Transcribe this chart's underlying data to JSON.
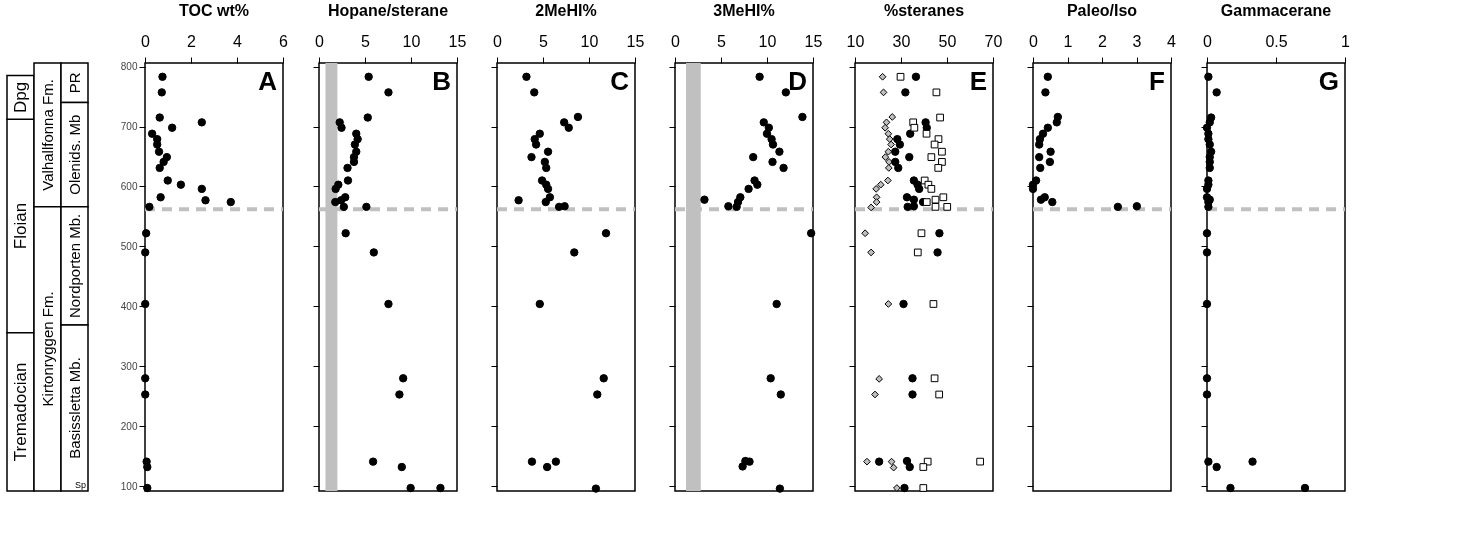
{
  "chart_data": [
    {
      "type": "scatter",
      "title": "TOC wt%",
      "xlim": [
        0,
        6
      ],
      "xticks": [
        0,
        2,
        4,
        6
      ],
      "ylim": [
        92,
        806
      ],
      "yticks": [
        100,
        200,
        300,
        400,
        500,
        600,
        700,
        800
      ],
      "marker": "circle",
      "annotations": [
        "A",
        "Floian",
        "Tremadocian",
        "Dpg",
        "Valhallfonna Fm.",
        "Kirtonryggen Fm.",
        "PR",
        "Olenids. Mb",
        "Nordporten Mb.",
        "Basissletta Mb.",
        "Sp"
      ],
      "ref_lines": [
        {
          "axis": "y",
          "value": 562,
          "color": "#c0c0c0",
          "line_style": "dashed"
        }
      ],
      "series": [
        {
          "color": "#000000",
          "x": [
            0.76,
            0.73,
            0.64,
            2.47,
            1.18,
            0.31,
            0.53,
            0.53,
            0.61,
            0.95,
            0.81,
            0.64,
            0.99,
            1.56,
            2.47,
            0.68,
            2.63,
            3.73,
            0.19,
            0.05,
            0.01,
            0.01,
            0.01,
            0.01,
            0.07,
            0.1,
            0.1
          ],
          "values": [
            783,
            757,
            715,
            707,
            698,
            688,
            679,
            670,
            658,
            649,
            641,
            631,
            610,
            603,
            596,
            582,
            577,
            574,
            566,
            522,
            490,
            404,
            280,
            253,
            141,
            132,
            97
          ]
        }
      ]
    },
    {
      "type": "scatter",
      "title": "Hopane/sterane",
      "xlim": [
        0,
        15
      ],
      "xticks": [
        0,
        5,
        10,
        15
      ],
      "ylim": [
        92,
        806
      ],
      "yticks": [
        100,
        200,
        300,
        400,
        500,
        600,
        700,
        800
      ],
      "tick_labels": "x",
      "marker": "circle",
      "annotations": [
        "B"
      ],
      "bands": [
        {
          "axis": "x",
          "from": 0.7,
          "to": 2.0,
          "color": "#c0c0c0"
        }
      ],
      "ref_lines": [
        {
          "axis": "y",
          "value": 562,
          "color": "#c0c0c0",
          "line_style": "dashed"
        }
      ],
      "series": [
        {
          "color": "#000000",
          "x": [
            5.4,
            7.55,
            5.3,
            2.25,
            2.45,
            4.05,
            4.2,
            3.9,
            4.05,
            3.8,
            3.8,
            3.1,
            3.15,
            2.1,
            1.81,
            2.85,
            2.4,
            1.77,
            2.7,
            5.15,
            2.9,
            5.96,
            7.55,
            9.15,
            8.74,
            5.88,
            9.0,
            9.96,
            13.2
          ],
          "values": [
            783,
            757,
            715,
            707,
            698,
            688,
            679,
            670,
            658,
            649,
            641,
            631,
            610,
            603,
            596,
            582,
            577,
            574,
            566,
            566,
            522,
            490,
            404,
            280,
            253,
            141,
            132,
            97,
            97
          ]
        }
      ]
    },
    {
      "type": "scatter",
      "title": "2MeHI%",
      "xlim": [
        0,
        15
      ],
      "xticks": [
        0,
        5,
        10,
        15
      ],
      "ylim": [
        92,
        806
      ],
      "yticks": [
        100,
        200,
        300,
        400,
        500,
        600,
        700,
        800
      ],
      "tick_labels": "x",
      "marker": "circle",
      "annotations": [
        "C"
      ],
      "ref_lines": [
        {
          "axis": "y",
          "value": 562,
          "color": "#c0c0c0",
          "line_style": "dashed"
        }
      ],
      "series": [
        {
          "color": "#000000",
          "x": [
            3.2,
            4.05,
            8.8,
            7.3,
            7.8,
            4.65,
            4.1,
            4.25,
            5.55,
            3.75,
            5.2,
            5.35,
            4.9,
            5.35,
            5.55,
            5.75,
            2.35,
            5.3,
            6.75,
            7.35,
            11.85,
            8.4,
            4.65,
            11.6,
            10.9,
            3.8,
            5.45,
            6.4,
            10.75
          ],
          "values": [
            783,
            757,
            716,
            707,
            698,
            688,
            679,
            670,
            658,
            649,
            641,
            631,
            610,
            603,
            596,
            582,
            577,
            574,
            566,
            567,
            522,
            490,
            404,
            280,
            253,
            141,
            132,
            141,
            96
          ]
        }
      ]
    },
    {
      "type": "scatter",
      "title": "3MeHI%",
      "xlim": [
        0,
        15
      ],
      "xticks": [
        0,
        5,
        10,
        15
      ],
      "ylim": [
        92,
        806
      ],
      "yticks": [
        100,
        200,
        300,
        400,
        500,
        600,
        700,
        800
      ],
      "tick_labels": "x",
      "marker": "circle",
      "annotations": [
        "D"
      ],
      "bands": [
        {
          "axis": "x",
          "from": 1.2,
          "to": 2.8,
          "color": "#c0c0c0"
        }
      ],
      "ref_lines": [
        {
          "axis": "y",
          "value": 562,
          "color": "#c0c0c0",
          "line_style": "dashed"
        }
      ],
      "series": [
        {
          "color": "#000000",
          "x": [
            9.2,
            12.05,
            13.85,
            9.65,
            10.2,
            10.0,
            10.5,
            10.65,
            11.35,
            8.5,
            10.6,
            11.8,
            8.65,
            8.95,
            8.0,
            7.1,
            3.2,
            6.85,
            5.8,
            6.7,
            14.8,
            11.05,
            10.4,
            11.5,
            7.65,
            8.1,
            7.35,
            11.4
          ],
          "values": [
            783,
            757,
            716,
            707,
            698,
            688,
            679,
            670,
            658,
            649,
            641,
            631,
            610,
            603,
            596,
            582,
            578,
            574,
            567,
            566,
            522,
            404,
            280,
            253,
            142,
            141,
            133,
            96
          ]
        }
      ]
    },
    {
      "type": "scatter",
      "title": "%steranes",
      "xlim": [
        10,
        70
      ],
      "xticks": [
        10,
        30,
        50,
        70
      ],
      "ylim": [
        92,
        806
      ],
      "yticks": [
        100,
        200,
        300,
        400,
        500,
        600,
        700,
        800
      ],
      "tick_labels": "x",
      "annotations": [
        "E"
      ],
      "ref_lines": [
        {
          "axis": "y",
          "value": 562,
          "color": "#c0c0c0",
          "line_style": "dashed"
        }
      ],
      "series": [
        {
          "color": "#bfbfbf",
          "marker": "diamond",
          "x": [
            22.0,
            22.4,
            26.2,
            23.7,
            23.1,
            24.5,
            25.1,
            25.7,
            24.5,
            23.2,
            24.8,
            24.7,
            24.3,
            21.2,
            19.2,
            19.4,
            19.4,
            17.0,
            14.4,
            17.0,
            24.5,
            20.5,
            18.7,
            15.2,
            25.9,
            26.8,
            28.2
          ],
          "values": [
            783,
            757,
            716,
            707,
            698,
            688,
            679,
            670,
            658,
            649,
            641,
            631,
            610,
            603,
            596,
            582,
            574,
            565,
            522,
            490,
            404,
            279,
            253,
            141,
            141,
            131,
            97
          ]
        },
        {
          "color": "#000000",
          "marker": "circle",
          "x": [
            36.5,
            31.9,
            40.7,
            41.2,
            34.0,
            28.4,
            29.5,
            27.5,
            33.6,
            27.5,
            28.8,
            35.6,
            37.2,
            37.9,
            32.6,
            35.6,
            39.6,
            32.9,
            35.6,
            46.7,
            45.9,
            31.1,
            35.0,
            35.0,
            20.5,
            32.6,
            33.8,
            31.5
          ],
          "values": [
            783,
            757,
            707,
            698,
            688,
            679,
            670,
            658,
            649,
            641,
            631,
            610,
            603,
            596,
            582,
            578,
            574,
            566,
            567,
            522,
            490,
            404,
            280,
            253,
            141,
            142,
            132,
            97
          ]
        },
        {
          "color": "#ffffff",
          "marker": "square",
          "x": [
            29.8,
            45.4,
            47.0,
            35.3,
            35.8,
            41.1,
            46.3,
            44.6,
            47.8,
            43.2,
            47.8,
            46.2,
            40.3,
            41.9,
            43.2,
            48.4,
            45.0,
            41.2,
            45.0,
            50.1,
            38.9,
            37.3,
            44.1,
            44.6,
            46.6,
            41.6,
            64.4,
            39.7,
            39.7
          ],
          "values": [
            783,
            757,
            715,
            707,
            698,
            688,
            679,
            670,
            658,
            649,
            641,
            631,
            610,
            603,
            596,
            582,
            578,
            574,
            566,
            566,
            522,
            490,
            404,
            280,
            253,
            141,
            141,
            132,
            97
          ]
        }
      ]
    },
    {
      "type": "scatter",
      "title": "Paleo/Iso",
      "xlim": [
        0,
        4
      ],
      "xticks": [
        0,
        1,
        2,
        3,
        4
      ],
      "ylim": [
        92,
        806
      ],
      "yticks": [
        100,
        200,
        300,
        400,
        500,
        600,
        700,
        800
      ],
      "tick_labels": "x",
      "marker": "circle",
      "annotations": [
        "F"
      ],
      "ref_lines": [
        {
          "axis": "y",
          "value": 562,
          "color": "#c0c0c0",
          "line_style": "dashed"
        }
      ],
      "series": [
        {
          "color": "#000000",
          "x": [
            0.43,
            0.36,
            0.72,
            0.69,
            0.43,
            0.29,
            0.2,
            0.18,
            0.51,
            0.18,
            0.49,
            0.21,
            0.09,
            0.0,
            0.0,
            0.34,
            0.23,
            0.56,
            2.46,
            3.01
          ],
          "values": [
            783,
            757,
            716,
            707,
            698,
            688,
            679,
            670,
            658,
            649,
            641,
            631,
            610,
            603,
            596,
            582,
            578,
            574,
            566,
            567
          ]
        }
      ]
    },
    {
      "type": "scatter",
      "title": "Gammacerane",
      "xlim": [
        0,
        1
      ],
      "xticks": [
        0,
        0.5,
        1
      ],
      "ylim": [
        92,
        806
      ],
      "yticks": [
        100,
        200,
        300,
        400,
        500,
        600,
        700,
        800
      ],
      "tick_labels": "x",
      "marker": "circle",
      "annotations": [
        "G"
      ],
      "ref_lines": [
        {
          "axis": "y",
          "value": 562,
          "color": "#c0c0c0",
          "line_style": "dashed"
        }
      ],
      "series": [
        {
          "color": "#000000",
          "x": [
            0.01,
            0.07,
            0.03,
            0.02,
            0.0,
            0.01,
            0.01,
            0.02,
            0.03,
            0.02,
            0.02,
            0.02,
            0.01,
            0.01,
            0.0,
            0.0,
            0.02,
            0.01,
            0.01,
            0.0,
            0.0,
            0.0,
            0.0,
            0.0,
            0.01,
            0.33,
            0.07,
            0.17,
            0.71
          ],
          "values": [
            783,
            757,
            715,
            707,
            698,
            688,
            679,
            670,
            658,
            649,
            641,
            631,
            610,
            603,
            596,
            582,
            578,
            574,
            566,
            522,
            490,
            404,
            280,
            253,
            141,
            141,
            132,
            97,
            97
          ]
        }
      ]
    }
  ]
}
